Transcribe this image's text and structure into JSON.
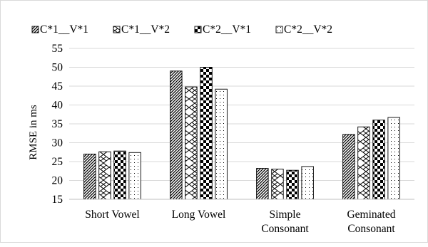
{
  "chart_data": {
    "type": "bar",
    "title": "",
    "xlabel": "",
    "ylabel": "RMSE in ms",
    "ylim": [
      15,
      55
    ],
    "y_ticks": [
      15,
      20,
      25,
      30,
      35,
      40,
      45,
      50,
      55
    ],
    "grid": true,
    "legend_position": "top",
    "categories": [
      [
        "Short Vowel"
      ],
      [
        "Long Vowel"
      ],
      [
        "Simple",
        "Consonant"
      ],
      [
        "Geminated",
        "Consonant"
      ]
    ],
    "series": [
      {
        "name": "C*1__V*1",
        "pattern": "diagonal-dense",
        "values": [
          27.0,
          49.0,
          23.2,
          32.2
        ]
      },
      {
        "name": "C*1__V*2",
        "pattern": "zigzag",
        "values": [
          27.6,
          44.8,
          23.0,
          34.2
        ]
      },
      {
        "name": "C*2__V*1",
        "pattern": "checker",
        "values": [
          27.8,
          50.0,
          22.7,
          36.0
        ]
      },
      {
        "name": "C*2__V*2",
        "pattern": "dotted",
        "values": [
          27.4,
          44.2,
          23.7,
          36.7
        ]
      }
    ]
  }
}
